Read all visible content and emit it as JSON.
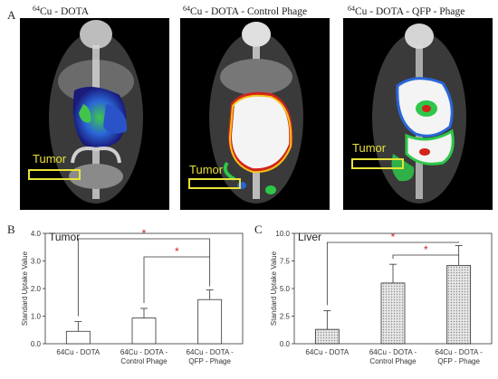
{
  "figure": {
    "panel_a": "A",
    "panel_b": "B",
    "panel_c": "C"
  },
  "scans": [
    {
      "prefix": "64",
      "title": "Cu - DOTA",
      "tumor_label": "Tumor"
    },
    {
      "prefix": "64",
      "title": "Cu - DOTA - Control Phage",
      "tumor_label": "Tumor"
    },
    {
      "prefix": "64",
      "title": "Cu - DOTA - QFP - Phage",
      "tumor_label": "Tumor"
    }
  ],
  "colors": {
    "tumor_label": "#e8e23a",
    "significance": "#cc2222",
    "bar_tumor": "#ffffff",
    "bar_liver": "#cfcfcf"
  },
  "chart_data": [
    {
      "type": "bar",
      "title": "Tumor",
      "ylabel": "Standard Uptake Value",
      "categories": [
        [
          "64Cu - DOTA"
        ],
        [
          "64Cu - DOTA -",
          "Control Phage"
        ],
        [
          "64Cu - DOTA -",
          "QFP - Phage"
        ]
      ],
      "values": [
        0.45,
        0.93,
        1.6
      ],
      "errors": [
        0.35,
        0.35,
        0.35
      ],
      "ylim": [
        0,
        4
      ],
      "yticks": [
        "0.0",
        "1.0",
        "2.0",
        "3.0",
        "4.0"
      ],
      "significance": [
        "*",
        "*"
      ]
    },
    {
      "type": "bar",
      "title": "Liver",
      "ylabel": "Standard Uptake Value",
      "categories": [
        [
          "64Cu - DOTA"
        ],
        [
          "64Cu - DOTA -",
          "Control Phage"
        ],
        [
          "64Cu - DOTA -",
          "QFP - Phage"
        ]
      ],
      "values": [
        1.3,
        5.5,
        7.1
      ],
      "errors": [
        1.7,
        1.7,
        1.8
      ],
      "ylim": [
        0,
        10
      ],
      "yticks": [
        "0.0",
        "2.5",
        "5.0",
        "7.5",
        "10.0"
      ],
      "significance": [
        "*",
        "*"
      ]
    }
  ]
}
